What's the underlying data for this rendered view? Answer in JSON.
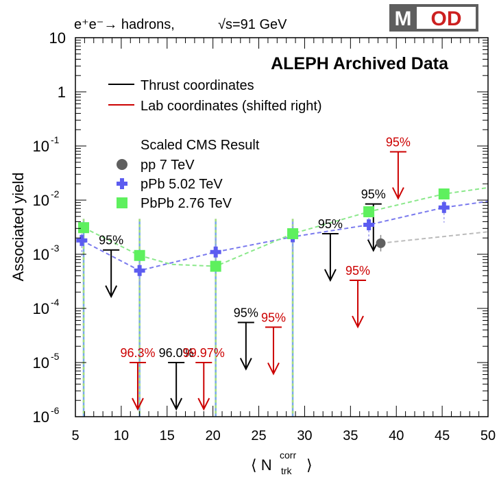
{
  "chart_data": {
    "type": "scatter",
    "title": "ALEPH Archived Data",
    "process_label": "e⁺e⁻→ hadrons,",
    "energy_label": "√s=91 GeV",
    "xlabel": "⟨ N",
    "xlabel_sup": "corr",
    "xlabel_sub": "trk",
    "xlabel_close": "⟩",
    "ylabel": "Associated yield",
    "xlim": [
      5,
      50
    ],
    "ylim": [
      1e-06,
      10
    ],
    "yscale": "log",
    "x_ticks": [
      "5",
      "10",
      "15",
      "20",
      "25",
      "30",
      "35",
      "40",
      "45",
      "50"
    ],
    "y_ticks": [
      {
        "base": "10",
        "exp": "-6",
        "value": 1e-06
      },
      {
        "base": "10",
        "exp": "-5",
        "value": 1e-05
      },
      {
        "base": "10",
        "exp": "-4",
        "value": 0.0001
      },
      {
        "base": "10",
        "exp": "-3",
        "value": 0.001
      },
      {
        "base": "10",
        "exp": "-2",
        "value": 0.01
      },
      {
        "base": "10",
        "exp": "-1",
        "value": 0.1
      },
      {
        "base": "1",
        "exp": "",
        "value": 1
      },
      {
        "base": "10",
        "exp": "",
        "value": 10
      }
    ],
    "legend": {
      "placement": "top-left",
      "header": "Scaled CMS Result",
      "line_entries": [
        {
          "label": "Thrust coordinates",
          "color": "#000000"
        },
        {
          "label": "Lab coordinates (shifted right)",
          "color": "#cc0000"
        }
      ]
    },
    "series": [
      {
        "name": "pp 7 TeV",
        "marker": "circle",
        "color": "#5f5f5f",
        "fit_color": "#bbbbbb",
        "x": [
          38.3
        ],
        "y": [
          0.0016
        ],
        "fit_x": [
          38.3,
          50
        ],
        "fit_y": [
          0.0016,
          0.0026
        ]
      },
      {
        "name": "pPb 5.02 TeV",
        "marker": "cross",
        "color": "#5c5cf0",
        "fit_color": "#7a7aee",
        "x": [
          5.7,
          12.0,
          20.3,
          28.7,
          37.0,
          45.2
        ],
        "y": [
          0.0018,
          0.0005,
          0.0011,
          0.0021,
          0.0035,
          0.0073
        ],
        "fit_x": [
          5.7,
          12.0,
          20.3,
          28.7,
          37.0,
          45.2,
          50
        ],
        "fit_y": [
          0.0018,
          0.0005,
          0.0011,
          0.0021,
          0.0035,
          0.0073,
          0.0095
        ]
      },
      {
        "name": "PbPb 2.76 TeV",
        "marker": "square",
        "color": "#5ef05e",
        "fit_color": "#8ae88a",
        "x": [
          5.9,
          12.0,
          20.3,
          28.7,
          37.0,
          45.2
        ],
        "y": [
          0.0031,
          0.00095,
          0.0006,
          0.0024,
          0.0061,
          0.013
        ],
        "fit_x": [
          5.9,
          12.0,
          15.5,
          20.3,
          28.7,
          37.0,
          45.2,
          50
        ],
        "fit_y": [
          0.0031,
          0.00095,
          0.00065,
          0.0006,
          0.0024,
          0.0061,
          0.013,
          0.017
        ]
      }
    ],
    "upper_limits": [
      {
        "coords": "thrust",
        "x": 8.9,
        "y": 0.0012,
        "cl": "95%"
      },
      {
        "coords": "thrust",
        "x": 16.0,
        "y": 1e-05,
        "cl": "96.0%"
      },
      {
        "coords": "thrust",
        "x": 23.6,
        "y": 5.5e-05,
        "cl": "95%"
      },
      {
        "coords": "thrust",
        "x": 32.8,
        "y": 0.0024,
        "cl": "95%"
      },
      {
        "coords": "thrust",
        "x": 37.5,
        "y": 0.0085,
        "cl": "95%"
      },
      {
        "coords": "lab",
        "x": 11.8,
        "y": 1e-05,
        "cl": "96.3%"
      },
      {
        "coords": "lab",
        "x": 19.0,
        "y": 1e-05,
        "cl": "99.97%"
      },
      {
        "coords": "lab",
        "x": 26.6,
        "y": 4.5e-05,
        "cl": "95%"
      },
      {
        "coords": "lab",
        "x": 35.8,
        "y": 0.00033,
        "cl": "95%"
      },
      {
        "coords": "lab",
        "x": 40.2,
        "y": 0.078,
        "cl": "95%"
      }
    ],
    "vertical_lines_x": [
      5.9,
      12.0,
      20.3,
      28.7
    ]
  },
  "logo": {
    "left": "M",
    "right": "OD"
  }
}
